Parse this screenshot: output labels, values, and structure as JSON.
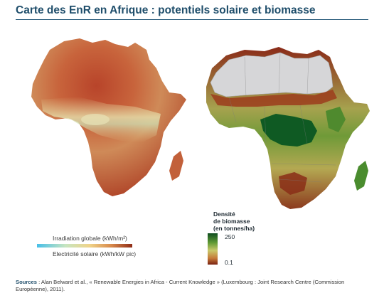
{
  "header": {
    "title": "Carte des EnR en Afrique : potentiels solaire et biomasse"
  },
  "solar_legend": {
    "top_label": "Irradiation globale (kWh/m²)",
    "bottom_label": "Electricité solaire (kWh/kW pic)"
  },
  "biomass_legend": {
    "title_line1": "Densité",
    "title_line2": "de biomasse",
    "title_line3": "(en tonnes/ha)",
    "max_value": "250",
    "min_value": "0.1"
  },
  "sources": {
    "label": "Sources",
    "text": " : Alan Belward et al., « Renewable Energies in Africa - Current Knowledge » (Luxembourg : Joint Research Centre (Commission Européenne), 2011)."
  },
  "colors": {
    "title": "#1f4e6b",
    "solar_high": "#a33a1e",
    "solar_low": "#47bfe8",
    "biomass_high": "#0f4d1f",
    "biomass_low": "#7a2212",
    "desert_grey": "#d6d6d8"
  }
}
